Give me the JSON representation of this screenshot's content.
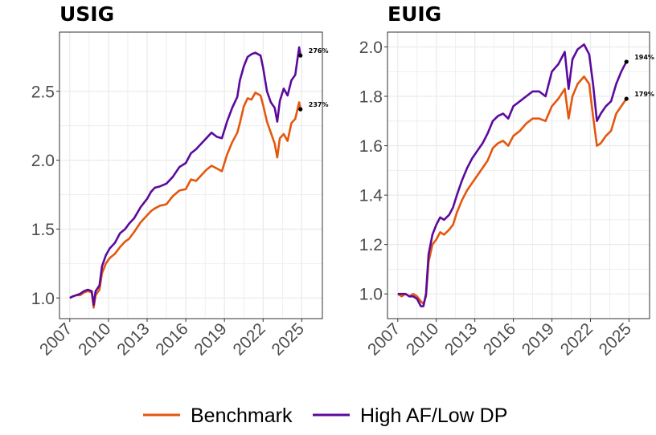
{
  "chart_data": {
    "type": "line",
    "panels": [
      {
        "title": "USIG",
        "xlim": [
          2006.2,
          2026.6
        ],
        "ylim": [
          0.85,
          2.93
        ],
        "xticks": [
          2007,
          2010,
          2013,
          2016,
          2019,
          2022,
          2025
        ],
        "xtick_labels": [
          "2007",
          "2010",
          "2013",
          "2016",
          "2019",
          "2022",
          "2025"
        ],
        "yticks": [
          1.0,
          1.5,
          2.0,
          2.5
        ],
        "ytick_labels": [
          "1.0",
          "1.5",
          "2.0",
          "2.5"
        ],
        "series": [
          {
            "name": "Benchmark",
            "points": [
              [
                2007.0,
                1.0
              ],
              [
                2007.2,
                1.01
              ],
              [
                2007.5,
                1.02
              ],
              [
                2007.8,
                1.02
              ],
              [
                2008.1,
                1.04
              ],
              [
                2008.4,
                1.05
              ],
              [
                2008.7,
                1.04
              ],
              [
                2008.85,
                0.93
              ],
              [
                2009.0,
                1.02
              ],
              [
                2009.3,
                1.06
              ],
              [
                2009.5,
                1.18
              ],
              [
                2009.8,
                1.25
              ],
              [
                2010.1,
                1.29
              ],
              [
                2010.5,
                1.32
              ],
              [
                2010.9,
                1.37
              ],
              [
                2011.3,
                1.41
              ],
              [
                2011.6,
                1.43
              ],
              [
                2012.0,
                1.48
              ],
              [
                2012.5,
                1.55
              ],
              [
                2013.0,
                1.6
              ],
              [
                2013.3,
                1.63
              ],
              [
                2013.6,
                1.65
              ],
              [
                2014.0,
                1.67
              ],
              [
                2014.5,
                1.68
              ],
              [
                2015.0,
                1.74
              ],
              [
                2015.5,
                1.78
              ],
              [
                2016.0,
                1.79
              ],
              [
                2016.4,
                1.86
              ],
              [
                2016.8,
                1.85
              ],
              [
                2017.2,
                1.89
              ],
              [
                2017.6,
                1.93
              ],
              [
                2018.0,
                1.96
              ],
              [
                2018.4,
                1.94
              ],
              [
                2018.8,
                1.92
              ],
              [
                2019.2,
                2.04
              ],
              [
                2019.6,
                2.13
              ],
              [
                2020.0,
                2.2
              ],
              [
                2020.2,
                2.27
              ],
              [
                2020.5,
                2.39
              ],
              [
                2020.8,
                2.45
              ],
              [
                2021.1,
                2.44
              ],
              [
                2021.4,
                2.49
              ],
              [
                2021.8,
                2.47
              ],
              [
                2022.0,
                2.4
              ],
              [
                2022.3,
                2.28
              ],
              [
                2022.6,
                2.2
              ],
              [
                2022.9,
                2.12
              ],
              [
                2023.1,
                2.02
              ],
              [
                2023.3,
                2.16
              ],
              [
                2023.6,
                2.19
              ],
              [
                2023.9,
                2.14
              ],
              [
                2024.2,
                2.27
              ],
              [
                2024.5,
                2.3
              ],
              [
                2024.8,
                2.42
              ],
              [
                2024.9,
                2.37
              ]
            ],
            "end_value": 2.37,
            "end_label": "237%"
          },
          {
            "name": "High AF/Low DP",
            "points": [
              [
                2007.0,
                1.0
              ],
              [
                2007.2,
                1.01
              ],
              [
                2007.5,
                1.02
              ],
              [
                2007.8,
                1.03
              ],
              [
                2008.1,
                1.05
              ],
              [
                2008.4,
                1.06
              ],
              [
                2008.7,
                1.05
              ],
              [
                2008.85,
                0.95
              ],
              [
                2009.0,
                1.05
              ],
              [
                2009.3,
                1.09
              ],
              [
                2009.5,
                1.23
              ],
              [
                2009.8,
                1.31
              ],
              [
                2010.1,
                1.36
              ],
              [
                2010.5,
                1.4
              ],
              [
                2010.9,
                1.47
              ],
              [
                2011.3,
                1.5
              ],
              [
                2011.6,
                1.54
              ],
              [
                2012.0,
                1.58
              ],
              [
                2012.5,
                1.66
              ],
              [
                2013.0,
                1.72
              ],
              [
                2013.3,
                1.77
              ],
              [
                2013.6,
                1.8
              ],
              [
                2014.0,
                1.81
              ],
              [
                2014.5,
                1.83
              ],
              [
                2015.0,
                1.88
              ],
              [
                2015.5,
                1.95
              ],
              [
                2016.0,
                1.98
              ],
              [
                2016.4,
                2.05
              ],
              [
                2016.8,
                2.08
              ],
              [
                2017.2,
                2.12
              ],
              [
                2017.6,
                2.16
              ],
              [
                2018.0,
                2.2
              ],
              [
                2018.4,
                2.17
              ],
              [
                2018.8,
                2.16
              ],
              [
                2019.2,
                2.28
              ],
              [
                2019.6,
                2.38
              ],
              [
                2020.0,
                2.46
              ],
              [
                2020.2,
                2.58
              ],
              [
                2020.5,
                2.68
              ],
              [
                2020.8,
                2.75
              ],
              [
                2021.1,
                2.77
              ],
              [
                2021.4,
                2.78
              ],
              [
                2021.8,
                2.76
              ],
              [
                2022.0,
                2.67
              ],
              [
                2022.3,
                2.5
              ],
              [
                2022.6,
                2.42
              ],
              [
                2022.9,
                2.38
              ],
              [
                2023.1,
                2.28
              ],
              [
                2023.3,
                2.43
              ],
              [
                2023.6,
                2.52
              ],
              [
                2023.9,
                2.47
              ],
              [
                2024.2,
                2.58
              ],
              [
                2024.5,
                2.62
              ],
              [
                2024.8,
                2.82
              ],
              [
                2024.9,
                2.76
              ]
            ],
            "end_value": 2.76,
            "end_label": "276%"
          }
        ]
      },
      {
        "title": "EUIG",
        "xlim": [
          2006.2,
          2026.6
        ],
        "ylim": [
          0.9,
          2.06
        ],
        "xticks": [
          2007,
          2010,
          2013,
          2016,
          2019,
          2022,
          2025
        ],
        "xtick_labels": [
          "2007",
          "2010",
          "2013",
          "2016",
          "2019",
          "2022",
          "2025"
        ],
        "yticks": [
          1.0,
          1.2,
          1.4,
          1.6,
          1.8,
          2.0
        ],
        "ytick_labels": [
          "1.0",
          "1.2",
          "1.4",
          "1.6",
          "1.8",
          "2.0"
        ],
        "series": [
          {
            "name": "Benchmark",
            "points": [
              [
                2007.0,
                1.0
              ],
              [
                2007.3,
                0.99
              ],
              [
                2007.6,
                1.0
              ],
              [
                2007.9,
                0.99
              ],
              [
                2008.2,
                1.0
              ],
              [
                2008.5,
                0.99
              ],
              [
                2008.8,
                0.97
              ],
              [
                2009.0,
                0.96
              ],
              [
                2009.2,
                0.99
              ],
              [
                2009.4,
                1.13
              ],
              [
                2009.7,
                1.2
              ],
              [
                2010.0,
                1.22
              ],
              [
                2010.3,
                1.25
              ],
              [
                2010.6,
                1.24
              ],
              [
                2011.0,
                1.26
              ],
              [
                2011.3,
                1.28
              ],
              [
                2011.6,
                1.33
              ],
              [
                2012.0,
                1.38
              ],
              [
                2012.4,
                1.42
              ],
              [
                2012.8,
                1.45
              ],
              [
                2013.2,
                1.48
              ],
              [
                2013.6,
                1.51
              ],
              [
                2014.0,
                1.54
              ],
              [
                2014.4,
                1.59
              ],
              [
                2014.8,
                1.61
              ],
              [
                2015.2,
                1.62
              ],
              [
                2015.6,
                1.6
              ],
              [
                2016.0,
                1.64
              ],
              [
                2016.5,
                1.66
              ],
              [
                2017.0,
                1.69
              ],
              [
                2017.5,
                1.71
              ],
              [
                2018.0,
                1.71
              ],
              [
                2018.5,
                1.7
              ],
              [
                2019.0,
                1.76
              ],
              [
                2019.5,
                1.79
              ],
              [
                2020.0,
                1.83
              ],
              [
                2020.3,
                1.71
              ],
              [
                2020.6,
                1.8
              ],
              [
                2021.0,
                1.85
              ],
              [
                2021.5,
                1.88
              ],
              [
                2021.9,
                1.85
              ],
              [
                2022.2,
                1.72
              ],
              [
                2022.5,
                1.6
              ],
              [
                2022.8,
                1.61
              ],
              [
                2023.2,
                1.64
              ],
              [
                2023.6,
                1.66
              ],
              [
                2024.0,
                1.73
              ],
              [
                2024.4,
                1.76
              ],
              [
                2024.8,
                1.79
              ]
            ],
            "end_value": 1.79,
            "end_label": "179%"
          },
          {
            "name": "High AF/Low DP",
            "points": [
              [
                2007.0,
                1.0
              ],
              [
                2007.3,
                1.0
              ],
              [
                2007.6,
                1.0
              ],
              [
                2007.9,
                0.99
              ],
              [
                2008.2,
                0.99
              ],
              [
                2008.5,
                0.98
              ],
              [
                2008.8,
                0.95
              ],
              [
                2009.0,
                0.95
              ],
              [
                2009.2,
                1.0
              ],
              [
                2009.4,
                1.16
              ],
              [
                2009.7,
                1.24
              ],
              [
                2010.0,
                1.28
              ],
              [
                2010.3,
                1.31
              ],
              [
                2010.6,
                1.3
              ],
              [
                2011.0,
                1.32
              ],
              [
                2011.3,
                1.35
              ],
              [
                2011.6,
                1.4
              ],
              [
                2012.0,
                1.46
              ],
              [
                2012.4,
                1.51
              ],
              [
                2012.8,
                1.55
              ],
              [
                2013.2,
                1.58
              ],
              [
                2013.6,
                1.61
              ],
              [
                2014.0,
                1.65
              ],
              [
                2014.4,
                1.7
              ],
              [
                2014.8,
                1.72
              ],
              [
                2015.2,
                1.73
              ],
              [
                2015.6,
                1.71
              ],
              [
                2016.0,
                1.76
              ],
              [
                2016.5,
                1.78
              ],
              [
                2017.0,
                1.8
              ],
              [
                2017.5,
                1.82
              ],
              [
                2018.0,
                1.82
              ],
              [
                2018.5,
                1.8
              ],
              [
                2019.0,
                1.9
              ],
              [
                2019.5,
                1.93
              ],
              [
                2020.0,
                1.98
              ],
              [
                2020.3,
                1.83
              ],
              [
                2020.6,
                1.95
              ],
              [
                2021.0,
                1.99
              ],
              [
                2021.5,
                2.01
              ],
              [
                2021.9,
                1.97
              ],
              [
                2022.2,
                1.85
              ],
              [
                2022.5,
                1.7
              ],
              [
                2022.8,
                1.73
              ],
              [
                2023.2,
                1.76
              ],
              [
                2023.6,
                1.78
              ],
              [
                2024.0,
                1.85
              ],
              [
                2024.4,
                1.9
              ],
              [
                2024.8,
                1.94
              ]
            ],
            "end_value": 1.94,
            "end_label": "194%"
          }
        ]
      }
    ],
    "legend": {
      "placement": "bottom",
      "entries": [
        {
          "name": "Benchmark",
          "color": "#E4570E"
        },
        {
          "name": "High AF/Low DP",
          "color": "#5B0A9E"
        }
      ]
    },
    "grid": true
  },
  "colors": {
    "benchmark": "#E4570E",
    "high_af_low_dp": "#5B0A9E",
    "grid": "#ebebeb",
    "panel_border": "#333333",
    "tick_text": "#4d4d4d"
  }
}
